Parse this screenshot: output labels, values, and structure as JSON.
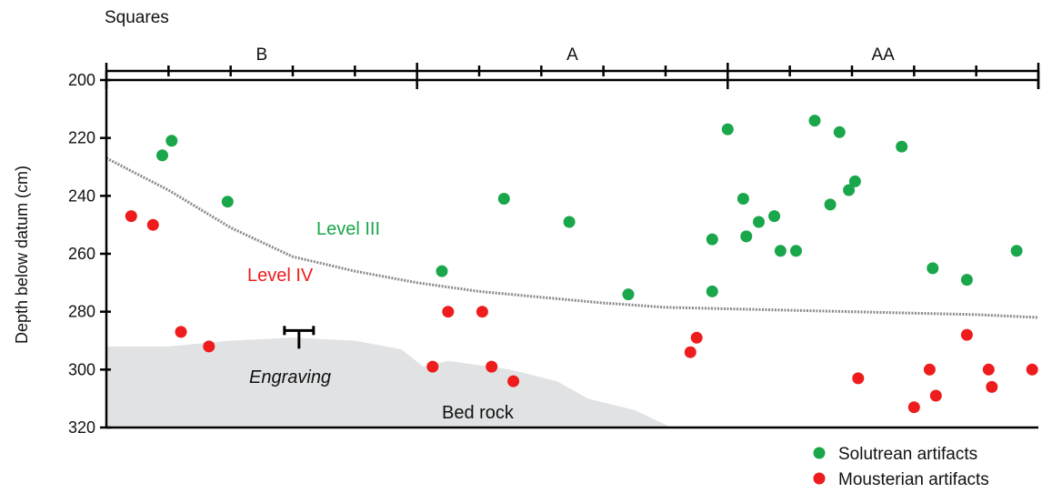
{
  "chart_data": {
    "type": "scatter",
    "top_axis_title": "Squares",
    "squares": [
      "B",
      "A",
      "AA"
    ],
    "ylabel": "Depth below datum (cm)",
    "ylim": [
      200,
      320
    ],
    "y_ticks": [
      200,
      220,
      240,
      260,
      280,
      300,
      320
    ],
    "y_tick_labels": [
      "200",
      "220",
      "240",
      "260",
      "280",
      "300",
      "320"
    ],
    "xlim": [
      0,
      3
    ],
    "grid": false,
    "legend_position": "bottom-right",
    "annotations": {
      "level_iii": "Level III",
      "level_iv": "Level IV",
      "engraving": "Engraving",
      "bed_rock": "Bed rock"
    },
    "level_boundary": {
      "x": [
        0,
        0.2,
        0.4,
        0.6,
        0.8,
        1.0,
        1.2,
        1.4,
        1.6,
        1.8,
        2.0,
        2.2,
        2.4,
        2.6,
        2.8,
        3.0
      ],
      "y": [
        227,
        238,
        251,
        261,
        266,
        270,
        273,
        275,
        277,
        278.5,
        279,
        279.5,
        280,
        280.5,
        281,
        282
      ]
    },
    "bedrock": {
      "x": [
        0,
        0.2,
        0.4,
        0.6,
        0.8,
        0.95,
        1.02,
        1.1,
        1.3,
        1.45,
        1.55,
        1.7,
        1.82,
        0
      ],
      "y": [
        292,
        292,
        290,
        289,
        290,
        293,
        299,
        297,
        300,
        304,
        310,
        314,
        320,
        320
      ]
    },
    "engraving_marker": {
      "x": 0.62,
      "y": 289
    },
    "series": [
      {
        "name": "Solutrean artifacts",
        "color": "#1aa64a",
        "points": [
          {
            "x": 0.18,
            "y": 226
          },
          {
            "x": 0.21,
            "y": 221
          },
          {
            "x": 0.39,
            "y": 242
          },
          {
            "x": 1.08,
            "y": 266
          },
          {
            "x": 1.28,
            "y": 241
          },
          {
            "x": 1.49,
            "y": 249
          },
          {
            "x": 1.68,
            "y": 274
          },
          {
            "x": 1.95,
            "y": 255
          },
          {
            "x": 1.95,
            "y": 273
          },
          {
            "x": 2.05,
            "y": 241
          },
          {
            "x": 2.06,
            "y": 254
          },
          {
            "x": 2.0,
            "y": 217
          },
          {
            "x": 2.1,
            "y": 249
          },
          {
            "x": 2.15,
            "y": 247
          },
          {
            "x": 2.17,
            "y": 259
          },
          {
            "x": 2.22,
            "y": 259
          },
          {
            "x": 2.28,
            "y": 214
          },
          {
            "x": 2.33,
            "y": 243
          },
          {
            "x": 2.36,
            "y": 218
          },
          {
            "x": 2.39,
            "y": 238
          },
          {
            "x": 2.41,
            "y": 235
          },
          {
            "x": 2.56,
            "y": 223
          },
          {
            "x": 2.66,
            "y": 265
          },
          {
            "x": 2.77,
            "y": 269
          },
          {
            "x": 2.93,
            "y": 259
          }
        ]
      },
      {
        "name": "Mousterian artifacts",
        "color": "#ee1c1c",
        "points": [
          {
            "x": 0.08,
            "y": 247
          },
          {
            "x": 0.15,
            "y": 250
          },
          {
            "x": 0.24,
            "y": 287
          },
          {
            "x": 0.33,
            "y": 292
          },
          {
            "x": 1.1,
            "y": 280
          },
          {
            "x": 1.21,
            "y": 280
          },
          {
            "x": 1.05,
            "y": 299
          },
          {
            "x": 1.24,
            "y": 299
          },
          {
            "x": 1.31,
            "y": 304
          },
          {
            "x": 1.88,
            "y": 294
          },
          {
            "x": 1.9,
            "y": 289
          },
          {
            "x": 2.42,
            "y": 303
          },
          {
            "x": 2.6,
            "y": 313
          },
          {
            "x": 2.65,
            "y": 300
          },
          {
            "x": 2.67,
            "y": 309
          },
          {
            "x": 2.77,
            "y": 288
          },
          {
            "x": 2.84,
            "y": 300
          },
          {
            "x": 2.85,
            "y": 306
          },
          {
            "x": 2.98,
            "y": 300
          }
        ]
      }
    ]
  }
}
